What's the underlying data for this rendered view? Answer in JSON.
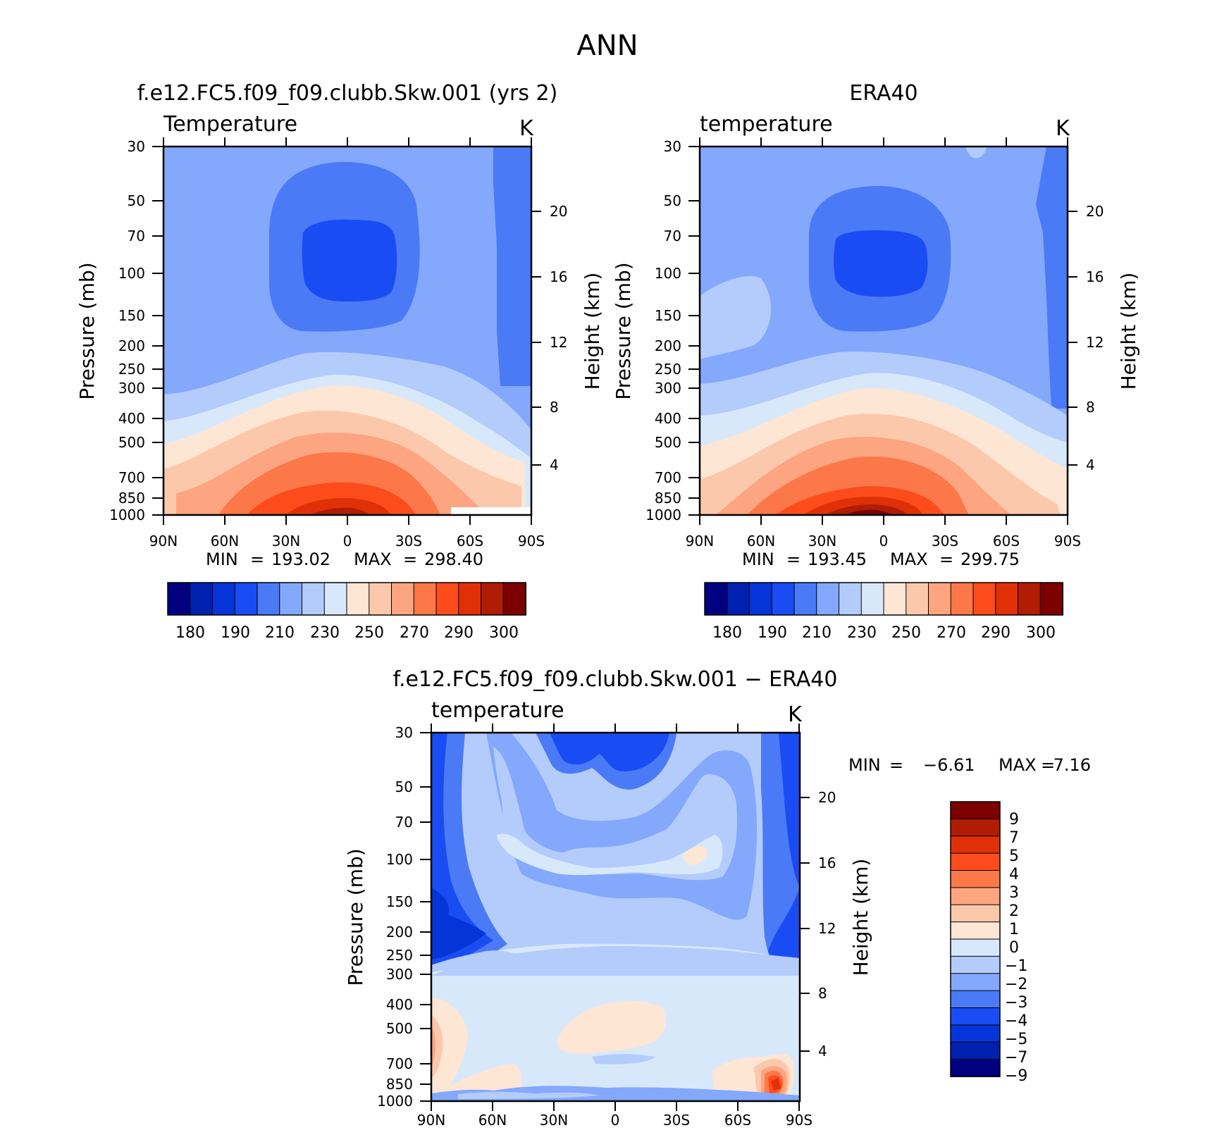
{
  "figure": {
    "main_title": "ANN"
  },
  "colors": {
    "palette": [
      "#000080",
      "#0020b0",
      "#0535d8",
      "#1a4cf4",
      "#4a7af6",
      "#83a8fc",
      "#b3ccfc",
      "#d8e8fb",
      "#fde6d4",
      "#fcc8ac",
      "#fca580",
      "#fc7848",
      "#fc4c1c",
      "#e03008",
      "#b01c04",
      "#7c0000"
    ],
    "diff_palette": [
      "#000080",
      "#0020b0",
      "#0535d8",
      "#1a4cf4",
      "#4a7af6",
      "#83a8fc",
      "#b3ccfc",
      "#d8e8fb",
      "#fde6d4",
      "#fcc8ac",
      "#fca580",
      "#fc7848",
      "#fc4c1c",
      "#e03008",
      "#b01c04",
      "#7c0000"
    ]
  },
  "panels": {
    "p1": {
      "title": "f.e12.FC5.f09_f09.clubb.Skw.001 (yrs 2)",
      "variable": "Temperature",
      "units": "K",
      "stats": {
        "min_label": "MIN",
        "min": "193.02",
        "max_label": "MAX",
        "max": "298.40"
      },
      "colorbar_labels": [
        "180",
        "190",
        "210",
        "230",
        "250",
        "270",
        "290",
        "300"
      ]
    },
    "p2": {
      "title": "ERA40",
      "variable": "temperature",
      "units": "K",
      "stats": {
        "min_label": "MIN",
        "min": "193.45",
        "max_label": "MAX",
        "max": "299.75"
      },
      "colorbar_labels": [
        "180",
        "190",
        "210",
        "230",
        "250",
        "270",
        "290",
        "300"
      ]
    },
    "p3": {
      "title": "f.e12.FC5.f09_f09.clubb.Skw.001 − ERA40",
      "variable": "temperature",
      "units": "K",
      "stats": {
        "min_label": "MIN",
        "min": "−6.61",
        "max_label": "MAX",
        "max": "7.16"
      },
      "colorbar_labels": [
        "9",
        "7",
        "5",
        "4",
        "3",
        "2",
        "1",
        "0",
        "−1",
        "−2",
        "−3",
        "−4",
        "−5",
        "−7",
        "−9"
      ]
    }
  },
  "axes": {
    "ylabel": "Pressure (mb)",
    "y2label": "Height (km)",
    "pressure_ticks": [
      "30",
      "50",
      "70",
      "100",
      "150",
      "200",
      "250",
      "300",
      "400",
      "500",
      "700",
      "850",
      "1000"
    ],
    "height_ticks": [
      "20",
      "16",
      "12",
      "8",
      "4"
    ],
    "lat_ticks": [
      "90N",
      "60N",
      "30N",
      "0",
      "30S",
      "60S",
      "90S"
    ]
  },
  "chart_data": [
    {
      "type": "heatmap",
      "title": "f.e12.FC5.f09_f09.clubb.Skw.001 (yrs 2)",
      "subtitle": "Temperature",
      "units": "K",
      "xlabel": "",
      "ylabel": "Pressure (mb)",
      "y2label": "Height (km)",
      "x_range": [
        "90N",
        "90S"
      ],
      "y_range_mb": [
        1000,
        30
      ],
      "levels": [
        180,
        185,
        190,
        200,
        210,
        220,
        230,
        240,
        250,
        260,
        270,
        280,
        290,
        295,
        300
      ],
      "min": 193.02,
      "max": 298.4
    },
    {
      "type": "heatmap",
      "title": "ERA40",
      "subtitle": "temperature",
      "units": "K",
      "xlabel": "",
      "ylabel": "Pressure (mb)",
      "y2label": "Height (km)",
      "x_range": [
        "90N",
        "90S"
      ],
      "y_range_mb": [
        1000,
        30
      ],
      "levels": [
        180,
        185,
        190,
        200,
        210,
        220,
        230,
        240,
        250,
        260,
        270,
        280,
        290,
        295,
        300
      ],
      "min": 193.45,
      "max": 299.75
    },
    {
      "type": "heatmap",
      "title": "f.e12.FC5.f09_f09.clubb.Skw.001 − ERA40",
      "subtitle": "temperature",
      "units": "K",
      "xlabel": "",
      "ylabel": "Pressure (mb)",
      "y2label": "Height (km)",
      "x_range": [
        "90N",
        "90S"
      ],
      "y_range_mb": [
        1000,
        30
      ],
      "levels": [
        -9,
        -7,
        -5,
        -4,
        -3,
        -2,
        -1,
        0,
        1,
        2,
        3,
        4,
        5,
        7,
        9
      ],
      "min": -6.61,
      "max": 7.16
    }
  ]
}
